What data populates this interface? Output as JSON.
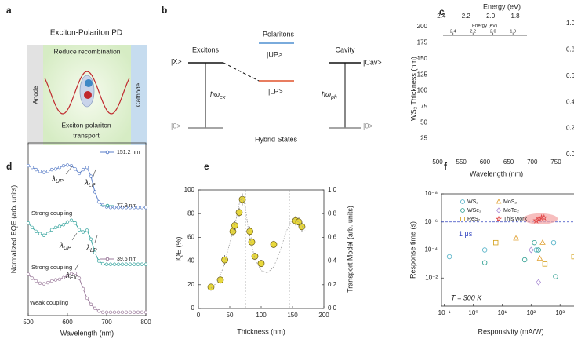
{
  "panel_labels": [
    "a",
    "b",
    "c",
    "d",
    "e",
    "f"
  ],
  "diagram_a": {
    "title": "Exciton-Polariton PD",
    "top_text": "Reduce recombination",
    "anode": "Anode",
    "cathode": "Cathode",
    "bottom_text": [
      "Exciton-polariton",
      "transport"
    ]
  },
  "diagram_b": {
    "polaritons": "Polaritons",
    "excitons": "Excitons",
    "cavity": "Cavity",
    "x_state": "|X>",
    "up_state": "|UP>",
    "lp_state": "|LP>",
    "cav_state": "|Cav>",
    "ex_energy": {
      "text": "ħω",
      "sub": "ex"
    },
    "ph_energy": {
      "text": "ħω",
      "sub": "ph"
    },
    "ground_left": "|0>",
    "ground_right": "|0>",
    "caption": "Hybrid States"
  },
  "chart_data": [
    {
      "type": "heatmap",
      "xlabel": "Wavelength (nm)",
      "ylabel": "WS₂ Thickness (nm)",
      "x2label": "Energy (eV)",
      "xlim": [
        495,
        755
      ],
      "xticks": [
        500,
        550,
        600,
        650,
        700,
        750
      ],
      "ylim": [
        0,
        205
      ],
      "yticks": [
        25,
        50,
        75,
        100,
        125,
        150,
        175,
        200
      ],
      "y2lim": [
        0,
        1
      ],
      "y2ticks": [
        {
          "value": 0,
          "label": "0.0"
        },
        0.2,
        0.4,
        0.6,
        0.8,
        {
          "value": 1,
          "label": "1.0"
        }
      ],
      "x2lim": [
        2.45,
        1.45
      ],
      "x2ticks": [
        2.4,
        2.2,
        {
          "value": 2,
          "label": "2.0"
        },
        1.8
      ],
      "inset": {
        "xlabel": "Energy (eV)",
        "xlim": [
          2.5,
          1.66
        ],
        "xticks": [
          2.4,
          2.2,
          {
            "value": 2,
            "label": "2.0"
          },
          1.8
        ]
      }
    },
    {
      "type": "line",
      "xlabel": "Wavelength (nm)",
      "ylabel": "Normalized EQE (arb. units)",
      "xlim": [
        500,
        800
      ],
      "xticks": [
        500,
        600,
        700,
        800
      ],
      "ylim": [
        0,
        3.1
      ],
      "x": [
        500,
        510,
        520,
        530,
        540,
        550,
        560,
        570,
        580,
        590,
        600,
        610,
        620,
        630,
        640,
        650,
        660,
        670,
        680,
        690,
        700,
        710,
        720,
        730,
        740,
        750,
        760,
        770,
        780,
        790,
        800
      ],
      "series": [
        {
          "name": "151.2 nm",
          "color": "#5a7ec8",
          "values": [
            2.69,
            2.66,
            2.62,
            2.59,
            2.57,
            2.59,
            2.62,
            2.63,
            2.66,
            2.69,
            2.7,
            2.69,
            2.63,
            2.55,
            2.62,
            2.66,
            2.5,
            2.22,
            2.04,
            1.98,
            1.95,
            1.94,
            1.94,
            1.94,
            1.94,
            1.94,
            1.94,
            1.94,
            1.94,
            1.94,
            1.94
          ]
        },
        {
          "name": "77.9 nm",
          "color": "#3aa6a0",
          "values": [
            1.66,
            1.58,
            1.51,
            1.47,
            1.44,
            1.47,
            1.54,
            1.58,
            1.6,
            1.63,
            1.68,
            1.71,
            1.66,
            1.54,
            1.5,
            1.53,
            1.37,
            1.13,
            0.98,
            0.93,
            0.92,
            0.92,
            0.92,
            0.92,
            0.92,
            0.92,
            0.92,
            0.92,
            0.92,
            0.92,
            0.92
          ]
        },
        {
          "name": "39.6 nm",
          "color": "#9c7c9c",
          "values": [
            0.74,
            0.67,
            0.62,
            0.58,
            0.57,
            0.59,
            0.62,
            0.64,
            0.65,
            0.68,
            0.72,
            0.75,
            0.76,
            0.67,
            0.48,
            0.31,
            0.2,
            0.13,
            0.08,
            0.06,
            0.06,
            0.06,
            0.06,
            0.06,
            0.06,
            0.06,
            0.06,
            0.06,
            0.06,
            0.06,
            0.06
          ]
        }
      ],
      "annotations": [
        {
          "text": "λ",
          "sub": "UP"
        },
        {
          "text": "λ",
          "sub": "LP"
        },
        {
          "text": "Strong coupling"
        },
        {
          "text": "λ",
          "sub": "UP"
        },
        {
          "text": "λ",
          "sub": "LP"
        },
        {
          "text": "Strong coupling"
        },
        {
          "text": "λ",
          "sub": "EX"
        },
        {
          "text": "Weak coupling"
        }
      ]
    },
    {
      "type": "scatter",
      "xlabel": "Thickness (nm)",
      "ylabel": "IQE (%)",
      "y2label": "Transport Model (arb. units)",
      "xlim": [
        0,
        200
      ],
      "xticks": [
        0,
        50,
        100,
        150,
        200
      ],
      "ylim": [
        0,
        100
      ],
      "yticks": [
        0,
        20,
        40,
        60,
        80,
        100
      ],
      "y2lim": [
        0,
        1
      ],
      "y2ticks": [
        {
          "value": 0,
          "label": "0.0"
        },
        0.2,
        0.4,
        0.6,
        0.8,
        {
          "value": 1,
          "label": "1.0"
        }
      ],
      "vlines": [
        75,
        145
      ],
      "series": [
        {
          "color": "#e8d83c",
          "x": [
            20,
            35,
            42,
            55,
            58,
            65,
            70,
            82,
            85,
            90,
            100,
            120,
            155,
            160,
            165
          ],
          "values": [
            18,
            24,
            41,
            65,
            70,
            81,
            92,
            65,
            56,
            44,
            38,
            54,
            74,
            73,
            69
          ],
          "errors": [
            3,
            3,
            4,
            4,
            4,
            4,
            5,
            4,
            4,
            3,
            3,
            3,
            4,
            4,
            4
          ]
        },
        {
          "color": "#9a9a9a",
          "axis": "y2",
          "x": [
            20,
            30,
            40,
            50,
            60,
            65,
            70,
            75,
            80,
            90,
            100,
            110,
            120,
            130,
            140,
            150,
            160,
            170
          ],
          "values": [
            0.17,
            0.22,
            0.35,
            0.55,
            0.75,
            0.88,
            0.95,
            0.85,
            0.65,
            0.42,
            0.32,
            0.3,
            0.35,
            0.48,
            0.65,
            0.76,
            0.73,
            0.66
          ]
        }
      ]
    },
    {
      "type": "scatter",
      "xlabel": "Responsivity (mA/W)",
      "ylabel": "Response time (s)",
      "xscale": "log",
      "yscale": "log",
      "y_reversed": true,
      "xlim": [
        0.08,
        5000
      ],
      "xticks": [
        {
          "value": 0.1,
          "label": "10⁻¹"
        },
        {
          "value": 1,
          "label": "10⁰"
        },
        {
          "value": 10,
          "label": "10¹"
        },
        {
          "value": 100,
          "label": "10²"
        },
        {
          "value": 1000,
          "label": "10³"
        }
      ],
      "ylim": [
        1e-08,
        1
      ],
      "yticks": [
        {
          "value": 1e-08,
          "label": "10⁻⁸"
        },
        {
          "value": 1e-06,
          "label": "10⁻⁶"
        },
        {
          "value": 0.0001,
          "label": "10⁻⁴"
        },
        {
          "value": 0.01,
          "label": "10⁻²"
        }
      ],
      "hline": {
        "value": 1e-06,
        "label": "1 μs",
        "color": "#3446c0"
      },
      "annotation": "T = 300 K",
      "series": [
        {
          "name": "WS₂",
          "color": "#4fb0c6",
          "marker": "circle",
          "x": [
            0.15,
            2.5,
            150,
            600
          ],
          "values": [
            0.0003,
            0.0001,
            0.0001,
            3e-05
          ]
        },
        {
          "name": "WSe₂",
          "color": "#2a9d8f",
          "marker": "circle",
          "x": [
            2.5,
            60,
            130,
            180,
            700
          ],
          "values": [
            0.0008,
            0.0005,
            3e-05,
            0.0001,
            0.008
          ]
        },
        {
          "name": "ReS₂",
          "color": "#d4a017",
          "marker": "square",
          "x": [
            6,
            300,
            3000
          ],
          "values": [
            3e-05,
            0.001,
            0.0003
          ]
        },
        {
          "name": "MoS₂",
          "color": "#e0a030",
          "marker": "triangle",
          "x": [
            30,
            200,
            250
          ],
          "values": [
            1.5e-05,
            0.0004,
            3e-05
          ]
        },
        {
          "name": "MoTe₂",
          "color": "#a98bd4",
          "marker": "diamond",
          "x": [
            100,
            180
          ],
          "values": [
            0.0001,
            0.02
          ]
        },
        {
          "name": "This work",
          "color": "#e04545",
          "marker": "star",
          "x": [
            150,
            190,
            230,
            280
          ],
          "values": [
            8e-07,
            6e-07,
            5e-07,
            5e-07
          ]
        }
      ]
    }
  ]
}
